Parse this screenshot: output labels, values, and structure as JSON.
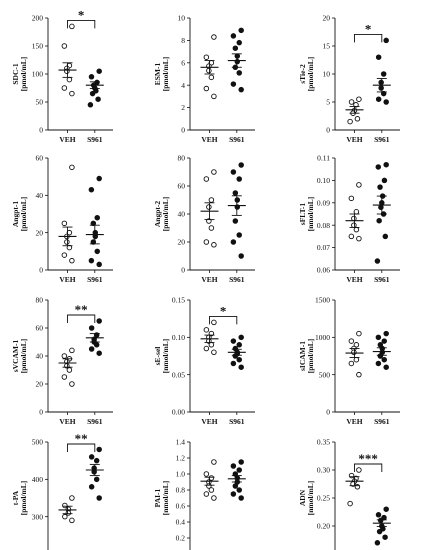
{
  "chart_data": [
    {
      "type": "scatter",
      "ylabel": "SDC-1",
      "unit": "[pmol/mL]",
      "categories": [
        "VEH",
        "S961"
      ],
      "ylim": [
        0,
        200
      ],
      "yticks": [
        "0",
        "50",
        "100",
        "150",
        "200"
      ],
      "series": [
        {
          "values": [
            185,
            150,
            115,
            110,
            105,
            90,
            75,
            65
          ]
        },
        {
          "values": [
            105,
            95,
            85,
            80,
            75,
            70,
            65,
            55,
            45
          ]
        }
      ],
      "mean": [
        107,
        80
      ],
      "sem": [
        13,
        6
      ],
      "significance": "*"
    },
    {
      "type": "scatter",
      "ylabel": "ESM-1",
      "unit": "[pmol/mL]",
      "categories": [
        "VEH",
        "S961"
      ],
      "ylim": [
        0,
        10
      ],
      "yticks": [
        "0",
        "2",
        "4",
        "6",
        "8",
        "10"
      ],
      "series": [
        {
          "values": [
            8.3,
            6.5,
            6.0,
            5.7,
            5.3,
            4.7,
            3.7,
            3.0
          ]
        },
        {
          "values": [
            8.9,
            8.4,
            7.8,
            7.3,
            6.6,
            6.1,
            5.6,
            5.1,
            4.1,
            3.6
          ]
        }
      ],
      "mean": [
        5.6,
        6.2
      ],
      "sem": [
        0.6,
        0.6
      ],
      "significance": ""
    },
    {
      "type": "scatter",
      "ylabel": "sTie-2",
      "unit": "[pmol/mL]",
      "categories": [
        "VEH",
        "S961"
      ],
      "ylim": [
        0,
        20
      ],
      "yticks": [
        "0",
        "5",
        "10",
        "15",
        "20"
      ],
      "series": [
        {
          "values": [
            5.5,
            5.0,
            4.5,
            3.5,
            3.0,
            2.0,
            1.5
          ]
        },
        {
          "values": [
            16,
            13,
            10,
            8.5,
            7.5,
            6.5,
            5.5,
            5.0
          ]
        }
      ],
      "mean": [
        3.6,
        8.0
      ],
      "sem": [
        0.6,
        1.2
      ],
      "significance": "*"
    },
    {
      "type": "scatter",
      "ylabel": "Angpt-1",
      "unit": "[pmol/mL]",
      "categories": [
        "VEH",
        "S961"
      ],
      "ylim": [
        0,
        60
      ],
      "yticks": [
        "0",
        "20",
        "40",
        "60"
      ],
      "series": [
        {
          "values": [
            55,
            25,
            20,
            18,
            15,
            12,
            8,
            5
          ]
        },
        {
          "values": [
            49,
            43,
            28,
            25,
            20,
            18,
            15,
            10,
            5,
            3
          ]
        }
      ],
      "mean": [
        18,
        19
      ],
      "sem": [
        5,
        5
      ],
      "significance": ""
    },
    {
      "type": "scatter",
      "ylabel": "Angpt-2",
      "unit": "[pmol/mL]",
      "categories": [
        "VEH",
        "S961"
      ],
      "ylim": [
        0,
        80
      ],
      "yticks": [
        "0",
        "20",
        "40",
        "60",
        "80"
      ],
      "series": [
        {
          "values": [
            70,
            65,
            50,
            45,
            35,
            30,
            20,
            18
          ]
        },
        {
          "values": [
            75,
            70,
            65,
            55,
            50,
            45,
            35,
            25,
            20,
            10
          ]
        }
      ],
      "mean": [
        42,
        46
      ],
      "sem": [
        6,
        7
      ],
      "significance": ""
    },
    {
      "type": "scatter",
      "ylabel": "sFLT-1",
      "unit": "[nmol/mL]",
      "categories": [
        "VEH",
        "S961"
      ],
      "ylim": [
        0.06,
        0.11
      ],
      "yticks": [
        "0.06",
        "0.07",
        "0.08",
        "0.09",
        "0.10",
        "0.11"
      ],
      "series": [
        {
          "values": [
            0.098,
            0.092,
            0.086,
            0.083,
            0.08,
            0.078,
            0.075,
            0.074
          ]
        },
        {
          "values": [
            0.107,
            0.106,
            0.1,
            0.097,
            0.093,
            0.09,
            0.088,
            0.085,
            0.082,
            0.075,
            0.064
          ]
        }
      ],
      "mean": [
        0.082,
        0.089
      ],
      "sem": [
        0.003,
        0.004
      ],
      "significance": ""
    },
    {
      "type": "scatter",
      "ylabel": "sVCAM-1",
      "unit": "[pmol/mL]",
      "categories": [
        "VEH",
        "S961"
      ],
      "ylim": [
        0,
        80
      ],
      "yticks": [
        "0",
        "20",
        "40",
        "60",
        "80"
      ],
      "series": [
        {
          "values": [
            44,
            40,
            38,
            36,
            33,
            30,
            25,
            20
          ]
        },
        {
          "values": [
            65,
            60,
            55,
            52,
            50,
            48,
            45,
            42
          ]
        }
      ],
      "mean": [
        35,
        53
      ],
      "sem": [
        3,
        3
      ],
      "significance": "**"
    },
    {
      "type": "scatter",
      "ylabel": "sE-sel",
      "unit": "[nmol/mL]",
      "categories": [
        "VEH",
        "S961"
      ],
      "ylim": [
        0,
        0.15
      ],
      "yticks": [
        "0.00",
        "0.05",
        "0.10",
        "0.15"
      ],
      "series": [
        {
          "values": [
            0.12,
            0.11,
            0.105,
            0.1,
            0.095,
            0.09,
            0.085,
            0.08
          ]
        },
        {
          "values": [
            0.1,
            0.095,
            0.09,
            0.085,
            0.08,
            0.078,
            0.075,
            0.07,
            0.065,
            0.06
          ]
        }
      ],
      "mean": [
        0.098,
        0.08
      ],
      "sem": [
        0.005,
        0.004
      ],
      "significance": "*"
    },
    {
      "type": "scatter",
      "ylabel": "sICAM-1",
      "unit": "[pmol/mL]",
      "categories": [
        "VEH",
        "S961"
      ],
      "ylim": [
        0,
        1500
      ],
      "yticks": [
        "0",
        "500",
        "1000",
        "1500"
      ],
      "series": [
        {
          "values": [
            1050,
            950,
            900,
            850,
            800,
            700,
            650,
            500
          ]
        },
        {
          "values": [
            1050,
            1000,
            950,
            900,
            850,
            800,
            750,
            700,
            650,
            600
          ]
        }
      ],
      "mean": [
        790,
        810
      ],
      "sem": [
        60,
        50
      ],
      "significance": ""
    },
    {
      "type": "scatter",
      "ylabel": "t-PA",
      "unit": "[pmol/mL]",
      "categories": [
        "VEH",
        "S961"
      ],
      "ylim": [
        200,
        500
      ],
      "yticks": [
        "200",
        "300",
        "400",
        "500"
      ],
      "series": [
        {
          "values": [
            350,
            330,
            320,
            310,
            300,
            290
          ]
        },
        {
          "values": [
            480,
            460,
            450,
            430,
            420,
            400,
            380,
            350
          ]
        }
      ],
      "mean": [
        318,
        425
      ],
      "sem": [
        10,
        15
      ],
      "significance": "**"
    },
    {
      "type": "scatter",
      "ylabel": "PAI-1",
      "unit": "[nmol/mL]",
      "categories": [
        "VEH",
        "S961"
      ],
      "ylim": [
        0,
        1.4
      ],
      "yticks": [
        "0.0",
        "0.2",
        "0.4",
        "0.6",
        "0.8",
        "1.0",
        "1.2",
        "1.4"
      ],
      "series": [
        {
          "values": [
            1.15,
            1.0,
            0.95,
            0.9,
            0.85,
            0.8,
            0.75,
            0.7
          ]
        },
        {
          "values": [
            1.15,
            1.1,
            1.05,
            1.0,
            0.95,
            0.9,
            0.85,
            0.8,
            0.75,
            0.7
          ]
        }
      ],
      "mean": [
        0.91,
        0.94
      ],
      "sem": [
        0.05,
        0.04
      ],
      "significance": ""
    },
    {
      "type": "scatter",
      "ylabel": "ADN",
      "unit": "[nmol/mL]",
      "categories": [
        "VEH",
        "S961"
      ],
      "ylim": [
        0.15,
        0.35
      ],
      "yticks": [
        "0.15",
        "0.20",
        "0.25",
        "0.30",
        "0.35"
      ],
      "series": [
        {
          "values": [
            0.3,
            0.29,
            0.285,
            0.28,
            0.275,
            0.27,
            0.24
          ]
        },
        {
          "values": [
            0.23,
            0.22,
            0.215,
            0.21,
            0.2,
            0.195,
            0.19,
            0.18,
            0.17
          ]
        }
      ],
      "mean": [
        0.28,
        0.205
      ],
      "sem": [
        0.008,
        0.006
      ],
      "significance": "***"
    }
  ]
}
